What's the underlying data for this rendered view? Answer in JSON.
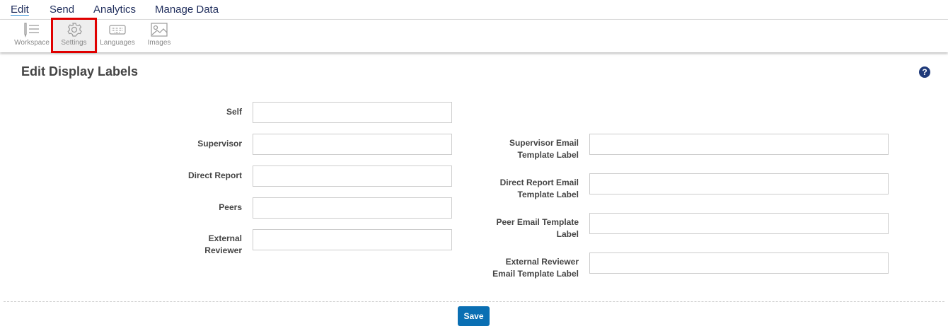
{
  "menu": {
    "items": [
      "Edit",
      "Send",
      "Analytics",
      "Manage Data"
    ],
    "active": "Edit"
  },
  "toolbar": {
    "items": [
      "Workspace",
      "Settings",
      "Languages",
      "Images"
    ],
    "selected": "Settings"
  },
  "page": {
    "title": "Edit Display Labels",
    "help_icon": "question-circle-icon"
  },
  "left_fields": [
    {
      "label": "Self",
      "value": ""
    },
    {
      "label": "Supervisor",
      "value": ""
    },
    {
      "label": "Direct Report",
      "value": ""
    },
    {
      "label": "Peers",
      "value": ""
    },
    {
      "label": "External Reviewer",
      "value": ""
    }
  ],
  "right_fields": [
    {
      "label": "Supervisor Email Template Label",
      "value": ""
    },
    {
      "label": "Direct Report Email Template Label",
      "value": ""
    },
    {
      "label": "Peer Email Template Label",
      "value": ""
    },
    {
      "label": "External Reviewer Email Template Label",
      "value": ""
    }
  ],
  "save_label": "Save",
  "colors": {
    "primary": "#0a6fb3",
    "highlight": "#e00000",
    "nav": "#1f2d5c"
  }
}
